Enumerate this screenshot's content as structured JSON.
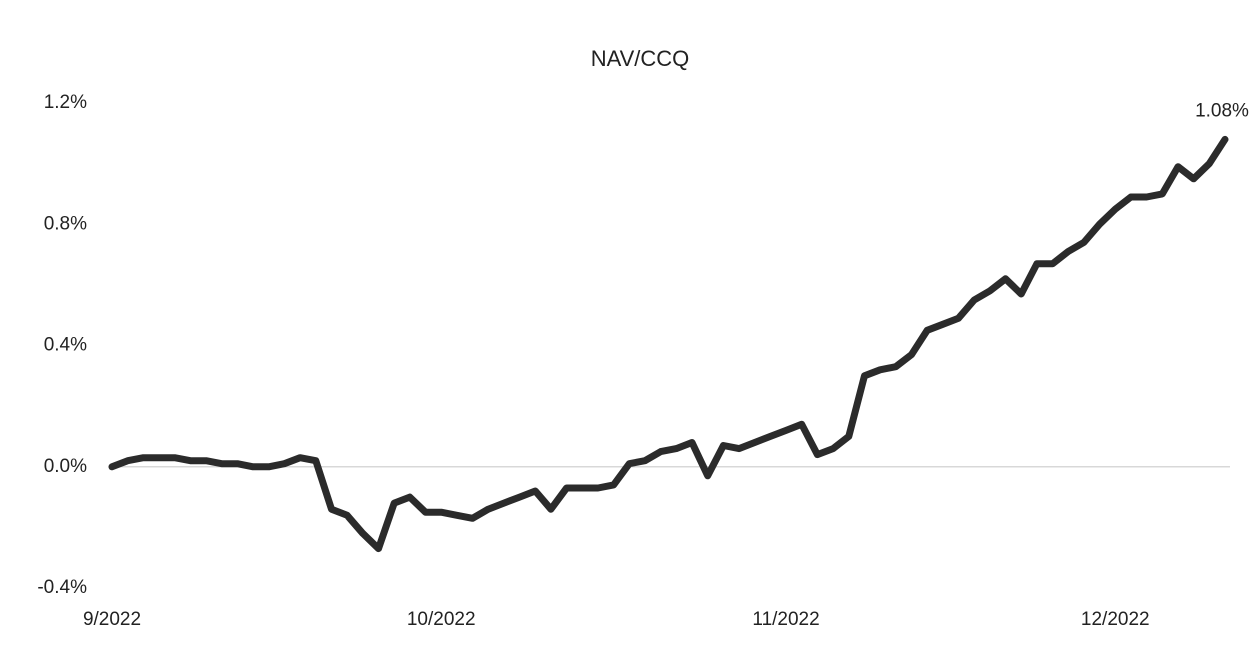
{
  "chart_data": {
    "type": "line",
    "title": "NAV/CCQ",
    "categories": [
      "9/2022",
      null,
      null,
      null,
      null,
      null,
      null,
      null,
      null,
      null,
      null,
      null,
      null,
      null,
      null,
      null,
      null,
      null,
      null,
      null,
      null,
      "10/2022",
      null,
      null,
      null,
      null,
      null,
      null,
      null,
      null,
      null,
      null,
      null,
      null,
      null,
      null,
      null,
      null,
      null,
      null,
      null,
      null,
      null,
      "11/2022",
      null,
      null,
      null,
      null,
      null,
      null,
      null,
      null,
      null,
      null,
      null,
      null,
      null,
      null,
      null,
      null,
      null,
      null,
      null,
      null,
      "12/2022",
      null,
      null,
      null,
      null,
      null,
      null,
      null
    ],
    "series": [
      {
        "name": "NAV/CCQ",
        "color": "#2b2b2b",
        "values": [
          0.0,
          0.02,
          0.03,
          0.03,
          0.03,
          0.02,
          0.02,
          0.01,
          0.01,
          0.0,
          0.0,
          0.01,
          0.03,
          0.02,
          -0.14,
          -0.16,
          -0.22,
          -0.27,
          -0.12,
          -0.1,
          -0.15,
          -0.15,
          -0.16,
          -0.17,
          -0.14,
          -0.12,
          -0.1,
          -0.08,
          -0.14,
          -0.07,
          -0.07,
          -0.07,
          -0.06,
          0.01,
          0.02,
          0.05,
          0.06,
          0.08,
          -0.03,
          0.07,
          0.06,
          0.08,
          0.1,
          0.12,
          0.14,
          0.04,
          0.06,
          0.1,
          0.3,
          0.32,
          0.33,
          0.37,
          0.45,
          0.47,
          0.49,
          0.55,
          0.58,
          0.62,
          0.57,
          0.67,
          0.67,
          0.71,
          0.74,
          0.8,
          0.85,
          0.89,
          0.89,
          0.9,
          0.99,
          0.95,
          1.0,
          1.08
        ],
        "value_labels": [
          null,
          null,
          null,
          null,
          null,
          null,
          null,
          null,
          null,
          null,
          null,
          null,
          null,
          null,
          null,
          null,
          null,
          null,
          null,
          null,
          null,
          null,
          null,
          null,
          null,
          null,
          null,
          null,
          null,
          null,
          null,
          null,
          null,
          null,
          null,
          null,
          null,
          null,
          null,
          null,
          null,
          null,
          null,
          null,
          null,
          null,
          null,
          null,
          null,
          null,
          null,
          null,
          null,
          null,
          null,
          null,
          null,
          null,
          null,
          null,
          null,
          null,
          null,
          null,
          null,
          null,
          null,
          null,
          null,
          null,
          null,
          "1.08%"
        ]
      }
    ],
    "ylim": [
      -0.4,
      1.2
    ],
    "yticks": [
      {
        "value": -0.4,
        "label": "-0.4%"
      },
      {
        "value": 0,
        "label": "0.0%"
      },
      {
        "value": 0.4,
        "label": "0.4%"
      },
      {
        "value": 0.8,
        "label": "0.8%"
      },
      {
        "value": 1.2,
        "label": "1.2%"
      }
    ],
    "zero_line": true
  }
}
